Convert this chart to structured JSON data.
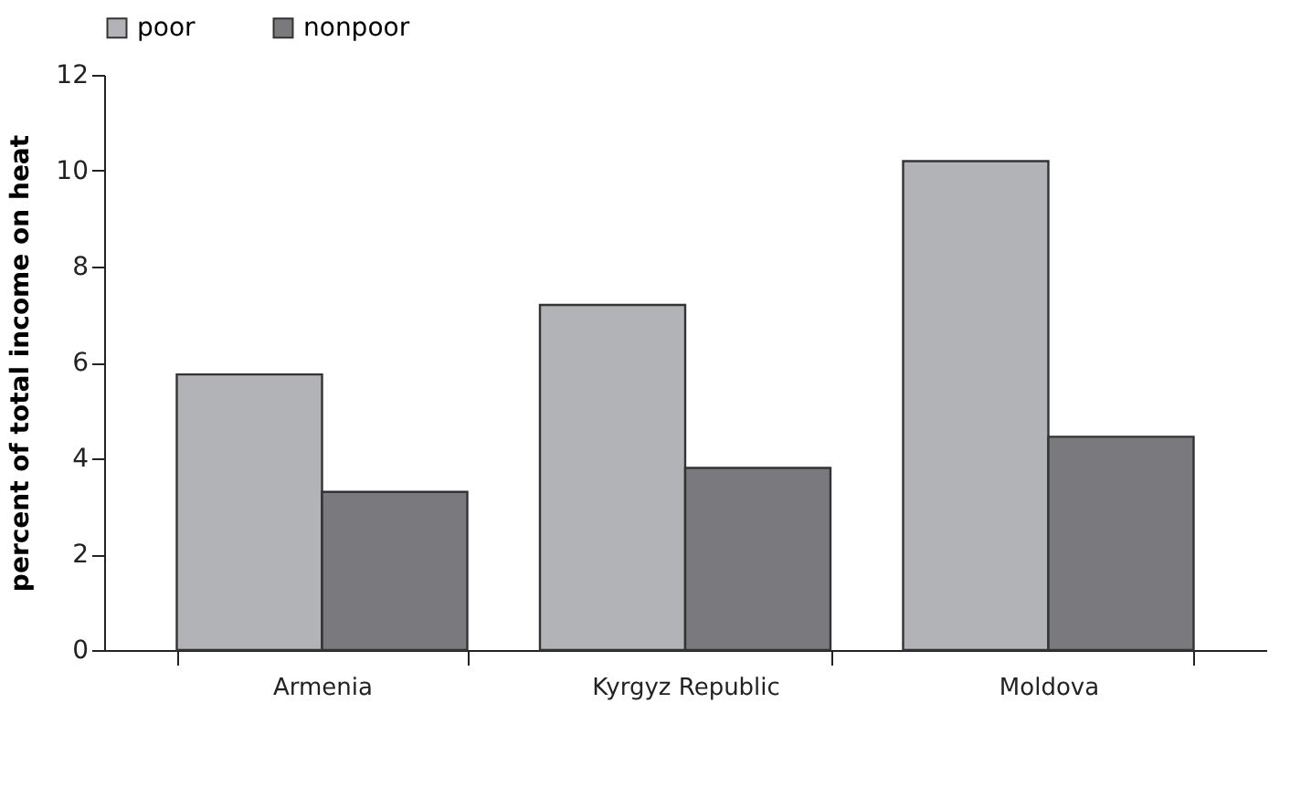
{
  "chart_data": {
    "type": "bar",
    "ylabel": "percent of total income on heat",
    "categories": [
      "Armenia",
      "Kyrgyz Republic",
      "Moldova"
    ],
    "series": [
      {
        "name": "poor",
        "color": "#b1b3b6",
        "values": [
          5.75,
          7.2,
          10.2
        ]
      },
      {
        "name": "nonpoor",
        "color": "#7a7a7e",
        "values": [
          3.3,
          3.8,
          4.45
        ]
      }
    ],
    "ylim": [
      0,
      12
    ],
    "yticks": [
      0,
      2,
      4,
      6,
      8,
      10,
      12
    ],
    "grid": false,
    "legend": "top"
  }
}
